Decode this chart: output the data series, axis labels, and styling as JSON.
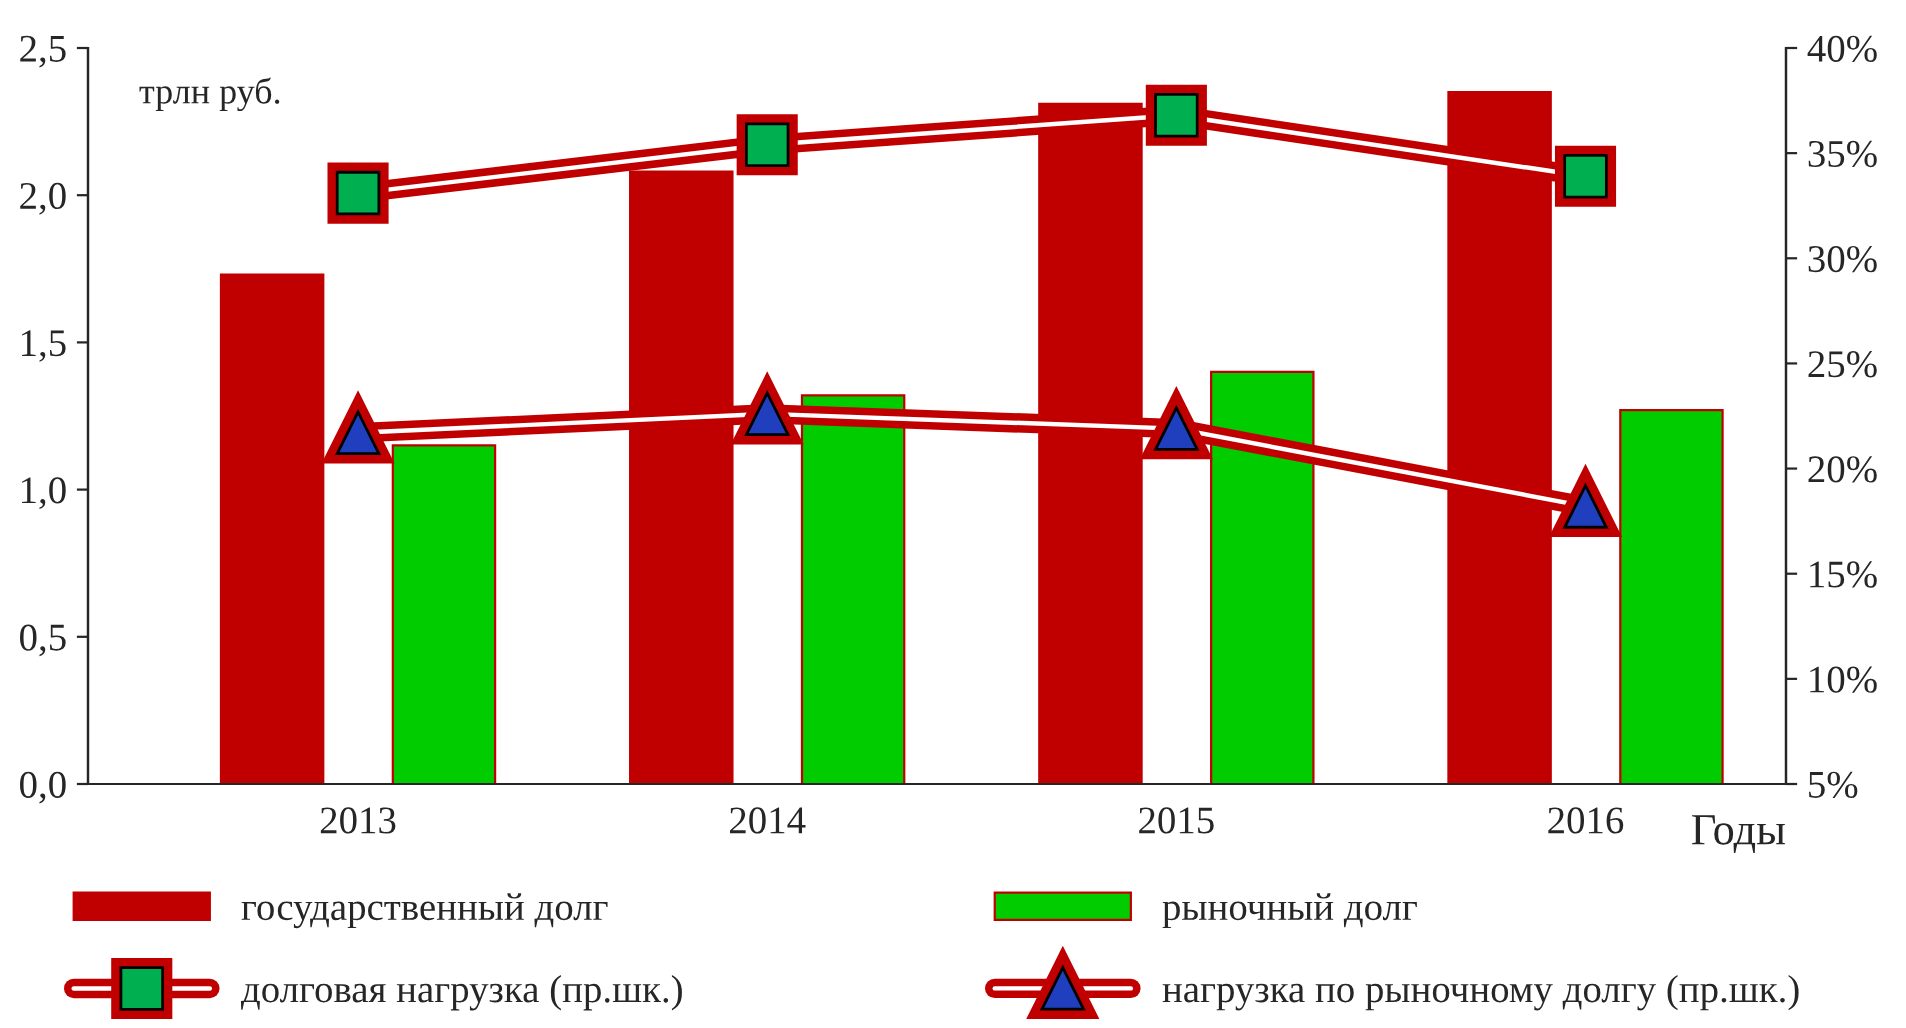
{
  "chart_data": {
    "type": "bar",
    "ylabel": "трлн руб.",
    "xlabel": "Годы",
    "categories": [
      "2013",
      "2014",
      "2015",
      "2016"
    ],
    "series": [
      {
        "name": "государственный долг",
        "color": "#c00000",
        "values": [
          1.73,
          2.08,
          2.31,
          2.35
        ]
      },
      {
        "name": "рыночный долг",
        "color": "#00cc00",
        "values": [
          1.15,
          1.32,
          1.4,
          1.27
        ]
      },
      {
        "name": "долговая нагрузка (пр.шк.)",
        "type": "line",
        "axis": "y2",
        "marker": "square",
        "color": "#c00000",
        "values": [
          33.1,
          35.4,
          36.8,
          33.9
        ]
      },
      {
        "name": "нагрузка по рыночному долгу (пр.шк.)",
        "type": "line",
        "axis": "y2",
        "marker": "triangle",
        "color": "#c00000",
        "values": [
          21.7,
          22.6,
          21.9,
          18.2
        ]
      }
    ],
    "ylim": [
      0,
      2.5
    ],
    "yticks": [
      {
        "value": 0,
        "label": "0,0"
      },
      {
        "value": 0.5,
        "label": "0,5"
      },
      {
        "value": 1.0,
        "label": "1,0"
      },
      {
        "value": 1.5,
        "label": "1,5"
      },
      {
        "value": 2.0,
        "label": "2,0"
      },
      {
        "value": 2.5,
        "label": "2,5"
      }
    ],
    "y2lim": [
      5,
      40
    ],
    "y2ticks": [
      {
        "value": 5,
        "label": "5%"
      },
      {
        "value": 10,
        "label": "10%"
      },
      {
        "value": 15,
        "label": "15%"
      },
      {
        "value": 20,
        "label": "20%"
      },
      {
        "value": 25,
        "label": "25%"
      },
      {
        "value": 30,
        "label": "30%"
      },
      {
        "value": 35,
        "label": "35%"
      },
      {
        "value": 40,
        "label": "40%"
      }
    ],
    "legend": "bottom",
    "grid": false
  }
}
